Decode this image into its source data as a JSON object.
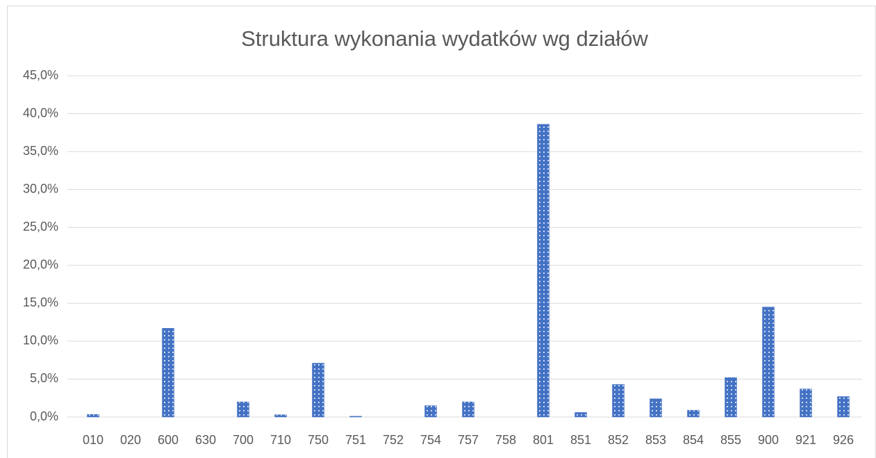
{
  "chart_data": {
    "type": "bar",
    "title": "Struktura wykonania wydatków wg działów",
    "categories": [
      "010",
      "020",
      "600",
      "630",
      "700",
      "710",
      "750",
      "751",
      "752",
      "754",
      "757",
      "758",
      "801",
      "851",
      "852",
      "853",
      "854",
      "855",
      "900",
      "921",
      "926"
    ],
    "values": [
      0.35,
      0,
      11.7,
      0,
      2.0,
      0.3,
      7.1,
      0.1,
      0,
      1.5,
      2.0,
      0,
      38.6,
      0.6,
      4.3,
      2.4,
      0.9,
      5.2,
      14.5,
      3.7,
      2.7
    ],
    "color": "#4472c4",
    "ylim": [
      0,
      45
    ],
    "yticks": [
      {
        "value": 0,
        "label": "0,0%"
      },
      {
        "value": 5,
        "label": "5,0%"
      },
      {
        "value": 10,
        "label": "10,0%"
      },
      {
        "value": 15,
        "label": "15,0%"
      },
      {
        "value": 20,
        "label": "20,0%"
      },
      {
        "value": 25,
        "label": "25,0%"
      },
      {
        "value": 30,
        "label": "30,0%"
      },
      {
        "value": 35,
        "label": "35,0%"
      },
      {
        "value": 40,
        "label": "40,0%"
      },
      {
        "value": 45,
        "label": "45,0%"
      }
    ],
    "grid": true
  }
}
